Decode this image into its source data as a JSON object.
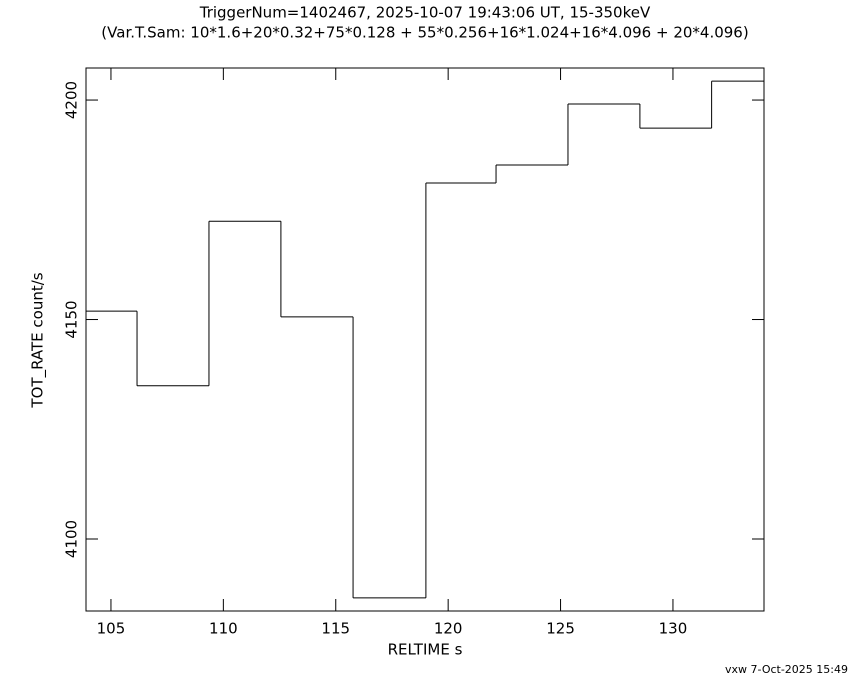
{
  "chart_data": {
    "type": "histogram",
    "title": "TriggerNum=1402467, 2025-10-07 19:43:06 UT, 15-350keV",
    "subtitle": "(Var.T.Sam: 10*1.6+20*0.32+75*0.128  +  55*0.256+16*1.024+16*4.096  +  20*4.096)",
    "x_label": "RELTIME  s",
    "y_label": "TOT_RATE  count/s",
    "footer": "vxw  7-Oct-2025 15:49",
    "bins": [
      102.96,
      106.16,
      109.36,
      112.56,
      115.77,
      119.01,
      122.13,
      125.33,
      128.53,
      131.72,
      134.92
    ],
    "values": [
      4151.9,
      4134.9,
      4172.4,
      4150.6,
      4086.6,
      4181.1,
      4185.2,
      4199.1,
      4193.6,
      4204.3
    ],
    "color": "#000000",
    "xlim": [
      103.89,
      134.05
    ],
    "ylim": [
      4083.6,
      4207.3
    ],
    "xticks": [
      105,
      110,
      115,
      120,
      125,
      130
    ],
    "yticks": [
      4100,
      4150,
      4200
    ]
  }
}
